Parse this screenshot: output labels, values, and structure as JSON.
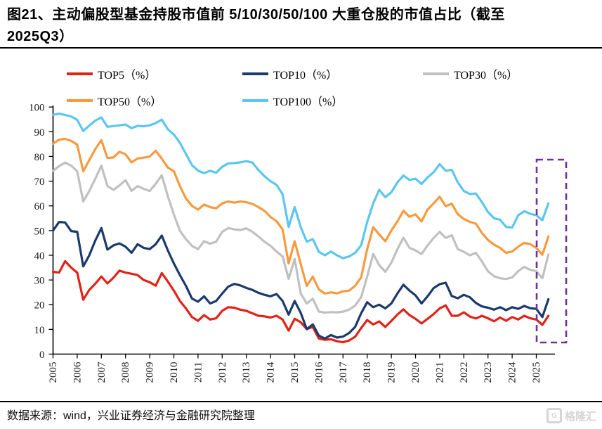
{
  "header": {
    "title_line1": "图21、主动偏股型基金持股市值前 5/10/30/50/100 大重仓股的市值占比（截至",
    "title_line2": "2025Q3）"
  },
  "footer": {
    "source": "数据来源：wind，兴业证券经济与金融研究院整理",
    "watermark": "格隆汇",
    "watermark_icon": "G"
  },
  "chart_data": {
    "type": "line",
    "title": "图21、主动偏股型基金持股市值前 5/10/30/50/100 大重仓股的市值占比（截至 2025Q3）",
    "x_frequency": "quarterly",
    "x_start": "2005Q1",
    "x_end": "2025Q3",
    "x_tick_labels": [
      "2005",
      "2006",
      "2007",
      "2008",
      "2009",
      "2010",
      "2011",
      "2012",
      "2013",
      "2014",
      "2015",
      "2016",
      "2017",
      "2018",
      "2019",
      "2020",
      "2021",
      "2022",
      "2023",
      "2024",
      "2025"
    ],
    "ylim": [
      0,
      100
    ],
    "y_ticks": [
      0,
      10,
      20,
      30,
      40,
      50,
      60,
      70,
      80,
      90,
      100
    ],
    "grid": "off",
    "legend_position": "top",
    "axis_color": "#000000",
    "highlight_box": {
      "label": "2025年区间（虚线框）",
      "color": "#7030a0",
      "style": "dashed"
    },
    "series": [
      {
        "name": "TOP5（%）",
        "color": "#e02318",
        "values": [
          33.3,
          33,
          37.6,
          35,
          33,
          22,
          26,
          28.5,
          31.4,
          28.6,
          30.9,
          33.8,
          33,
          32.5,
          32,
          30,
          29.1,
          27.7,
          32.8,
          29.4,
          25.7,
          21.5,
          18.5,
          15,
          13.5,
          15.8,
          14,
          14.5,
          17.5,
          19,
          18.8,
          18,
          17.5,
          16.5,
          15.5,
          15.3,
          14.8,
          15.5,
          14,
          9.5,
          14.3,
          12.9,
          10.1,
          11,
          6.3,
          5.8,
          6,
          5.2,
          4.8,
          5.5,
          7,
          10.5,
          13.8,
          12,
          13.2,
          11,
          13.4,
          16,
          18.1,
          15.8,
          14.3,
          12.4,
          14.3,
          16.2,
          18.5,
          19.7,
          15.5,
          15.5,
          16.9,
          15.2,
          14.4,
          15.5,
          14.5,
          13.3,
          14.8,
          13.5,
          15,
          14,
          15.5,
          14.5,
          14,
          11.8,
          15.5
        ]
      },
      {
        "name": "TOP10（%）",
        "color": "#1a3a6e",
        "values": [
          50,
          53.5,
          53.3,
          49.8,
          49.5,
          35.5,
          40,
          46,
          51,
          42.3,
          44,
          44.8,
          43.5,
          41,
          44.5,
          43,
          42.5,
          44.5,
          48,
          42,
          36.7,
          32,
          27.6,
          22.5,
          21.2,
          23.4,
          20.5,
          21.5,
          24.5,
          27.3,
          28.4,
          27.8,
          26.8,
          26,
          24.8,
          24,
          23.4,
          24.3,
          21.5,
          16,
          21.5,
          16.7,
          10.1,
          12,
          7.5,
          6.3,
          7.7,
          6.7,
          7.1,
          8.5,
          11,
          16.5,
          21,
          19,
          20,
          18.5,
          20.5,
          24.5,
          28.1,
          25.7,
          23.8,
          20.5,
          23.4,
          26.7,
          28.3,
          28.9,
          23.5,
          22.6,
          24,
          23,
          20.7,
          19.3,
          18.8,
          18,
          19,
          17.8,
          19,
          18.3,
          19.5,
          18.6,
          18.3,
          15,
          22.2
        ]
      },
      {
        "name": "TOP30（%）",
        "color": "#c0c0c0",
        "values": [
          74.2,
          76.1,
          77.5,
          76.3,
          74,
          61.8,
          66,
          71,
          76.3,
          68,
          66.5,
          68.3,
          70.4,
          66.1,
          68,
          66.9,
          66,
          69,
          72.4,
          64,
          56.5,
          49.9,
          46.5,
          43.8,
          42.5,
          45.7,
          44.7,
          45.5,
          49.5,
          51,
          50.5,
          50.2,
          50.9,
          49.5,
          47.6,
          45.5,
          43.8,
          41.5,
          39.5,
          30.5,
          38.5,
          24.5,
          20.5,
          22.4,
          17.2,
          16.8,
          17,
          16.9,
          17.2,
          18,
          19.6,
          23,
          31.4,
          40.5,
          36,
          33.3,
          37,
          42.4,
          47.1,
          43,
          42,
          40.5,
          44,
          47,
          49.5,
          47,
          48.1,
          42.5,
          41.4,
          40,
          41,
          37.5,
          33.5,
          31.5,
          30.7,
          30.4,
          31,
          33.6,
          35.3,
          34.1,
          33.6,
          30.7,
          40.3
        ]
      },
      {
        "name": "TOP50（%）",
        "color": "#f79a40",
        "values": [
          85.2,
          86.8,
          87.1,
          86.3,
          84.8,
          74,
          78.5,
          83,
          86.6,
          79.4,
          79.6,
          81.9,
          80.9,
          77.6,
          79.2,
          79.5,
          80,
          82.3,
          79.1,
          75.5,
          74,
          68,
          63,
          60,
          58.5,
          60.5,
          59.5,
          59,
          61,
          61.8,
          61.3,
          61.8,
          61.5,
          60.8,
          59.5,
          58,
          55.5,
          53.8,
          50.5,
          36.7,
          45.7,
          36.5,
          27.6,
          31.4,
          26.2,
          24.5,
          25,
          24.6,
          25.4,
          25.7,
          27.6,
          31,
          42.4,
          51.4,
          48.4,
          45.7,
          50,
          53.7,
          58,
          55.6,
          56.6,
          53.7,
          58.5,
          61,
          63.7,
          59.9,
          60.9,
          56.6,
          54.7,
          53.5,
          52.8,
          49,
          46.2,
          44.3,
          43,
          41,
          41.5,
          43.5,
          45,
          44.5,
          43,
          40.2,
          47.6
        ]
      },
      {
        "name": "TOP100（%）",
        "color": "#5bc6ef",
        "values": [
          96.9,
          97.3,
          96.8,
          96.2,
          94.8,
          90.3,
          92.5,
          94.5,
          95.8,
          92,
          92.3,
          92.6,
          92.9,
          91.4,
          92.4,
          92.2,
          92.6,
          93.5,
          94.9,
          91,
          88.9,
          85.5,
          81,
          76.5,
          74.3,
          73.2,
          74.2,
          73.4,
          75.8,
          77.2,
          77.3,
          77.6,
          78.1,
          77.5,
          74.5,
          72,
          70,
          68.5,
          64.7,
          51.5,
          59.5,
          51.4,
          45.5,
          46.5,
          41.4,
          40,
          41.5,
          40,
          38.8,
          39.5,
          41,
          44,
          53.5,
          61,
          66.5,
          63.5,
          65.5,
          69.5,
          72.3,
          70.5,
          71,
          68.9,
          71.5,
          73.6,
          76.9,
          74.2,
          74.6,
          69.5,
          66,
          64.8,
          65,
          61.5,
          57.5,
          55,
          54.4,
          51.5,
          51.2,
          56.2,
          57.8,
          56.8,
          56.2,
          54.2,
          61
        ]
      }
    ]
  }
}
